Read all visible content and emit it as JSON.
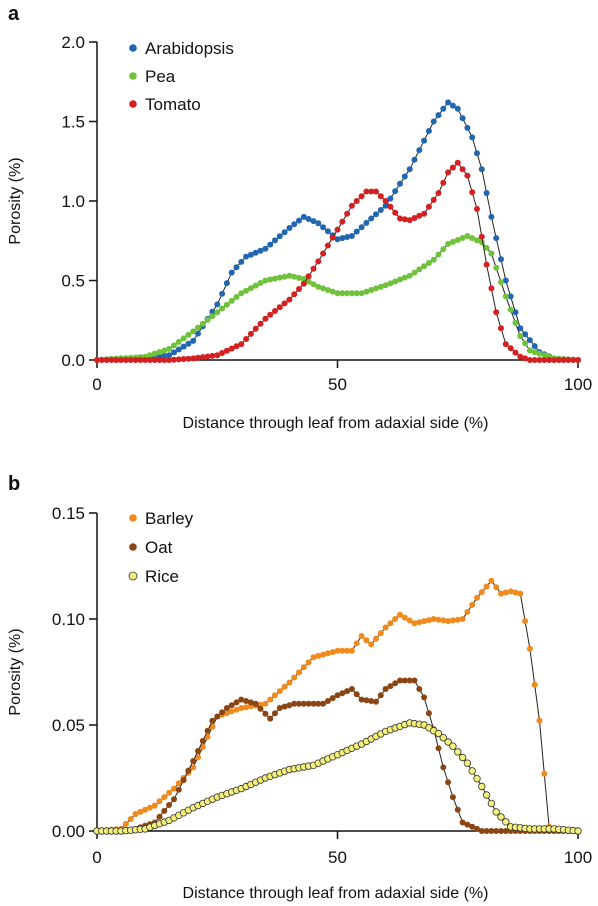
{
  "chart_data": [
    {
      "type": "scatter",
      "panel_label": "a",
      "title": "",
      "xlabel": "Distance through leaf from adaxial side (%)",
      "ylabel": "Porosity (%)",
      "xlim": [
        0,
        100
      ],
      "ylim": [
        0,
        2.0
      ],
      "xticks": [
        0,
        50,
        100
      ],
      "xtick_labels": [
        "0",
        "50",
        "100"
      ],
      "yticks": [
        0,
        0.5,
        1.0,
        1.5,
        2.0
      ],
      "ytick_labels": [
        "0.0",
        "0.5",
        "1.0",
        "1.5",
        "2.0"
      ],
      "grid": false,
      "legend_position": "top-left",
      "series": [
        {
          "name": "Arabidopsis",
          "color": "#2166b0",
          "marker": "filled-circle",
          "points": [
            [
              0,
              0
            ],
            [
              5,
              0.01
            ],
            [
              10,
              0.01
            ],
            [
              15,
              0.03
            ],
            [
              20,
              0.12
            ],
            [
              25,
              0.35
            ],
            [
              28,
              0.55
            ],
            [
              31,
              0.65
            ],
            [
              35,
              0.7
            ],
            [
              40,
              0.83
            ],
            [
              43,
              0.9
            ],
            [
              46,
              0.86
            ],
            [
              50,
              0.76
            ],
            [
              53,
              0.78
            ],
            [
              57,
              0.89
            ],
            [
              60,
              0.97
            ],
            [
              65,
              1.2
            ],
            [
              70,
              1.5
            ],
            [
              73,
              1.62
            ],
            [
              75,
              1.58
            ],
            [
              78,
              1.4
            ],
            [
              80,
              1.2
            ],
            [
              82,
              0.9
            ],
            [
              85,
              0.5
            ],
            [
              88,
              0.2
            ],
            [
              92,
              0.05
            ],
            [
              95,
              0.01
            ],
            [
              100,
              0
            ]
          ]
        },
        {
          "name": "Pea",
          "color": "#6fc23a",
          "marker": "filled-circle",
          "points": [
            [
              0,
              0
            ],
            [
              10,
              0.02
            ],
            [
              15,
              0.07
            ],
            [
              20,
              0.18
            ],
            [
              25,
              0.3
            ],
            [
              30,
              0.42
            ],
            [
              35,
              0.5
            ],
            [
              40,
              0.53
            ],
            [
              43,
              0.51
            ],
            [
              46,
              0.46
            ],
            [
              50,
              0.42
            ],
            [
              55,
              0.42
            ],
            [
              60,
              0.47
            ],
            [
              65,
              0.53
            ],
            [
              70,
              0.63
            ],
            [
              73,
              0.73
            ],
            [
              77,
              0.78
            ],
            [
              80,
              0.74
            ],
            [
              82,
              0.67
            ],
            [
              85,
              0.4
            ],
            [
              88,
              0.15
            ],
            [
              90,
              0.06
            ],
            [
              95,
              0.01
            ],
            [
              100,
              0
            ]
          ]
        },
        {
          "name": "Tomato",
          "color": "#d42020",
          "marker": "filled-circle",
          "points": [
            [
              0,
              0
            ],
            [
              15,
              0
            ],
            [
              20,
              0.01
            ],
            [
              25,
              0.03
            ],
            [
              30,
              0.1
            ],
            [
              35,
              0.26
            ],
            [
              40,
              0.38
            ],
            [
              43,
              0.48
            ],
            [
              46,
              0.62
            ],
            [
              50,
              0.82
            ],
            [
              53,
              0.97
            ],
            [
              56,
              1.06
            ],
            [
              58,
              1.06
            ],
            [
              60,
              1.0
            ],
            [
              63,
              0.89
            ],
            [
              65,
              0.88
            ],
            [
              68,
              0.92
            ],
            [
              71,
              1.05
            ],
            [
              73,
              1.18
            ],
            [
              75,
              1.24
            ],
            [
              77,
              1.16
            ],
            [
              79,
              0.95
            ],
            [
              81,
              0.6
            ],
            [
              83,
              0.3
            ],
            [
              85,
              0.1
            ],
            [
              88,
              0.02
            ],
            [
              90,
              0
            ],
            [
              100,
              0
            ]
          ]
        }
      ]
    },
    {
      "type": "scatter",
      "panel_label": "b",
      "title": "",
      "xlabel": "Distance through leaf from adaxial side (%)",
      "ylabel": "Porosity (%)",
      "xlim": [
        0,
        100
      ],
      "ylim": [
        0,
        0.15
      ],
      "xticks": [
        0,
        50,
        100
      ],
      "xtick_labels": [
        "0",
        "50",
        "100"
      ],
      "yticks": [
        0,
        0.05,
        0.1,
        0.15
      ],
      "ytick_labels": [
        "0.00",
        "0.05",
        "0.10",
        "0.15"
      ],
      "grid": false,
      "legend_position": "top-left",
      "series": [
        {
          "name": "Barley",
          "color": "#f08a1d",
          "marker": "filled-circle",
          "points": [
            [
              0,
              0
            ],
            [
              5,
              0.001
            ],
            [
              8,
              0.008
            ],
            [
              12,
              0.012
            ],
            [
              16,
              0.02
            ],
            [
              20,
              0.03
            ],
            [
              25,
              0.054
            ],
            [
              30,
              0.058
            ],
            [
              35,
              0.06
            ],
            [
              40,
              0.07
            ],
            [
              45,
              0.082
            ],
            [
              50,
              0.085
            ],
            [
              53,
              0.085
            ],
            [
              55,
              0.092
            ],
            [
              57,
              0.088
            ],
            [
              60,
              0.096
            ],
            [
              63,
              0.102
            ],
            [
              66,
              0.098
            ],
            [
              70,
              0.1
            ],
            [
              73,
              0.099
            ],
            [
              76,
              0.1
            ],
            [
              79,
              0.11
            ],
            [
              82,
              0.118
            ],
            [
              84,
              0.112
            ],
            [
              86,
              0.113
            ],
            [
              88,
              0.112
            ],
            [
              90,
              0.086
            ],
            [
              92,
              0.052
            ],
            [
              94,
              0.002
            ],
            [
              96,
              0
            ],
            [
              100,
              0
            ]
          ]
        },
        {
          "name": "Oat",
          "color": "#8b4513",
          "marker": "filled-circle",
          "points": [
            [
              0,
              0
            ],
            [
              5,
              0
            ],
            [
              8,
              0.001
            ],
            [
              12,
              0.004
            ],
            [
              16,
              0.015
            ],
            [
              20,
              0.033
            ],
            [
              24,
              0.052
            ],
            [
              27,
              0.058
            ],
            [
              30,
              0.062
            ],
            [
              33,
              0.06
            ],
            [
              36,
              0.053
            ],
            [
              38,
              0.058
            ],
            [
              41,
              0.06
            ],
            [
              44,
              0.06
            ],
            [
              47,
              0.06
            ],
            [
              50,
              0.064
            ],
            [
              53,
              0.067
            ],
            [
              55,
              0.062
            ],
            [
              58,
              0.061
            ],
            [
              60,
              0.067
            ],
            [
              63,
              0.071
            ],
            [
              66,
              0.071
            ],
            [
              68,
              0.063
            ],
            [
              70,
              0.048
            ],
            [
              72,
              0.03
            ],
            [
              74,
              0.016
            ],
            [
              76,
              0.004
            ],
            [
              80,
              0
            ],
            [
              100,
              0
            ]
          ]
        },
        {
          "name": "Rice",
          "color": "#f5f07a",
          "marker": "open-circle",
          "points": [
            [
              0,
              0
            ],
            [
              5,
              0
            ],
            [
              10,
              0.001
            ],
            [
              15,
              0.005
            ],
            [
              20,
              0.011
            ],
            [
              25,
              0.016
            ],
            [
              30,
              0.02
            ],
            [
              35,
              0.025
            ],
            [
              40,
              0.029
            ],
            [
              45,
              0.031
            ],
            [
              50,
              0.036
            ],
            [
              55,
              0.041
            ],
            [
              60,
              0.047
            ],
            [
              65,
              0.051
            ],
            [
              68,
              0.05
            ],
            [
              71,
              0.046
            ],
            [
              74,
              0.04
            ],
            [
              77,
              0.032
            ],
            [
              80,
              0.021
            ],
            [
              83,
              0.009
            ],
            [
              86,
              0.002
            ],
            [
              90,
              0.001
            ],
            [
              95,
              0.001
            ],
            [
              100,
              0
            ]
          ]
        }
      ]
    }
  ]
}
